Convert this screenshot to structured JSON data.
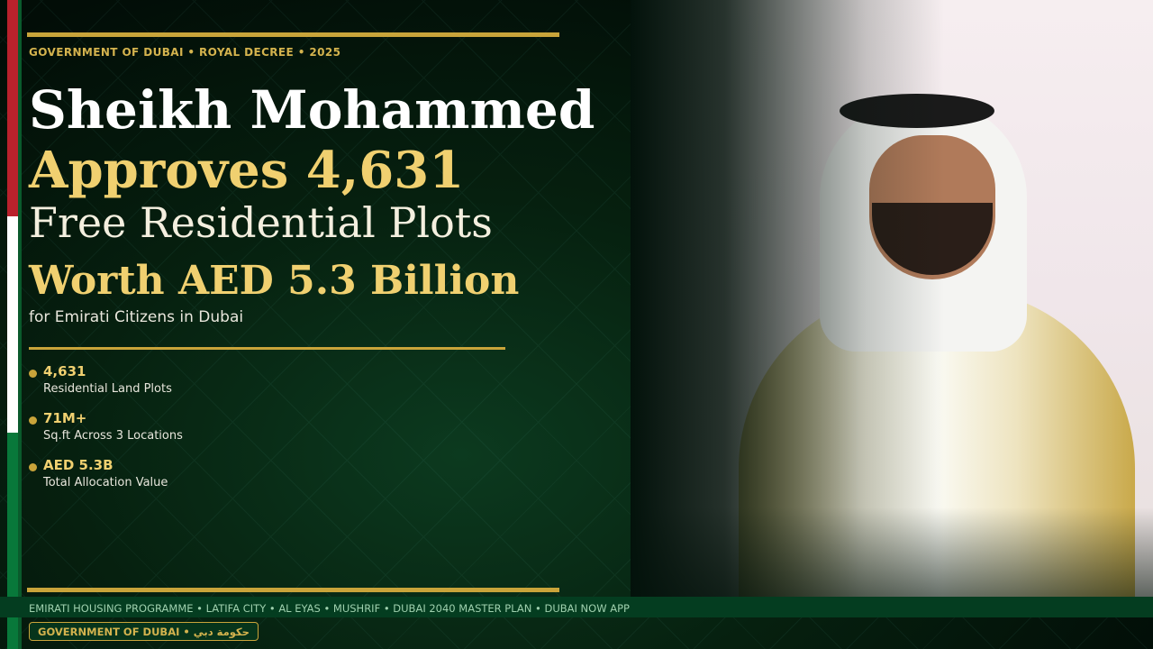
{
  "header": {
    "kicker": "GOVERNMENT OF DUBAI  •  ROYAL DECREE  •  2025"
  },
  "headline": {
    "line1": "Sheikh Mohammed",
    "line2": "Approves 4,631",
    "line3": "Free Residential Plots",
    "line4": "Worth AED 5.3 Billion",
    "subtitle": "for Emirati Citizens in Dubai"
  },
  "stats": [
    {
      "value": "4,631",
      "label": "Residential Land Plots"
    },
    {
      "value": "71M+",
      "label": "Sq.ft Across 3 Locations"
    },
    {
      "value": "AED 5.3B",
      "label": "Total Allocation Value"
    }
  ],
  "ticker": "EMIRATI HOUSING PROGRAMME  •  LATIFA CITY  •  AL EYAS  •  MUSHRIF  •  DUBAI 2040 MASTER PLAN  •  DUBAI NOW APP",
  "badge": "GOVERNMENT OF DUBAI  •  حكومة دبي",
  "colors": {
    "gold": "#c9a43a",
    "accent_text": "#f0d070",
    "green": "#08783a",
    "red": "#b9212c"
  }
}
